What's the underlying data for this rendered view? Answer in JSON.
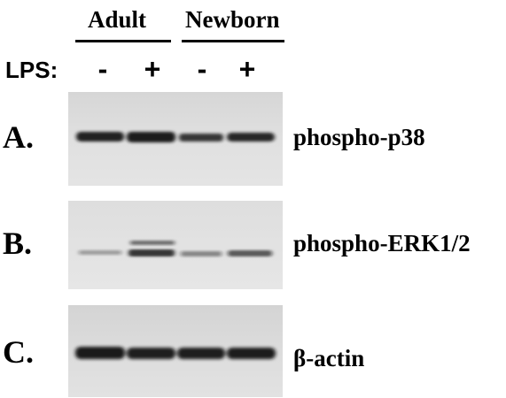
{
  "groups": [
    {
      "label": "Adult"
    },
    {
      "label": "Newborn"
    }
  ],
  "treatment": {
    "label": "LPS:",
    "lanes": [
      "-",
      "+",
      "-",
      "+"
    ]
  },
  "panels": [
    {
      "letter": "A.",
      "protein": "phospho-p38"
    },
    {
      "letter": "B.",
      "protein": "phospho-ERK1/2"
    },
    {
      "letter": "C.",
      "protein": "β-actin"
    }
  ],
  "colors": {
    "membrane": "#dcdcdc",
    "band": "#141414",
    "text": "#000000"
  }
}
